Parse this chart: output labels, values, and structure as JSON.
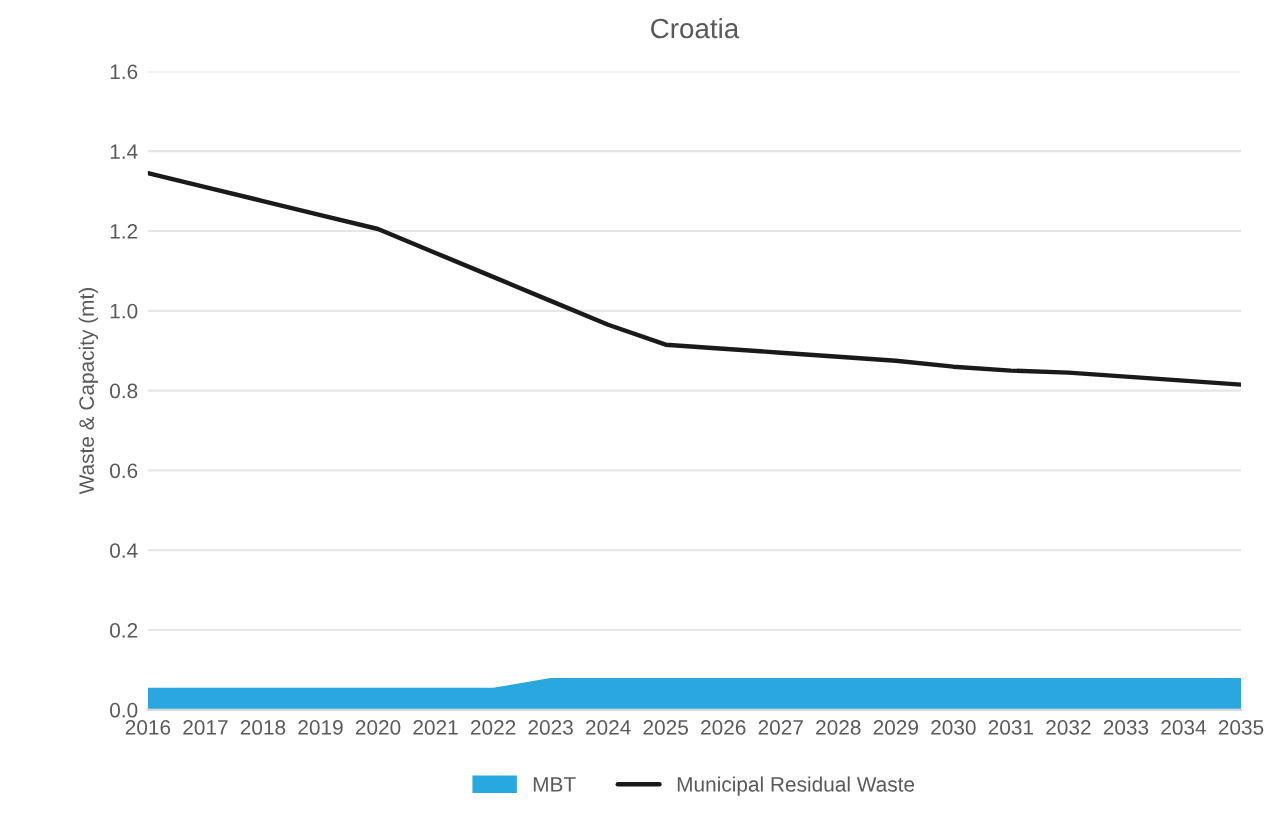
{
  "chart_data": {
    "type": "area",
    "title": "Croatia",
    "ylabel": "Waste & Capacity (mt)",
    "categories": [
      "2016",
      "2017",
      "2018",
      "2019",
      "2020",
      "2021",
      "2022",
      "2023",
      "2024",
      "2025",
      "2026",
      "2027",
      "2028",
      "2029",
      "2030",
      "2031",
      "2032",
      "2033",
      "2034",
      "2035"
    ],
    "series": [
      {
        "name": "MBT",
        "color": "#29a8e0",
        "values": [
          0.055,
          0.055,
          0.055,
          0.055,
          0.055,
          0.055,
          0.055,
          0.08,
          0.08,
          0.08,
          0.08,
          0.08,
          0.08,
          0.08,
          0.08,
          0.08,
          0.08,
          0.08,
          0.08,
          0.08
        ]
      },
      {
        "name": "Municipal Residual Waste",
        "type": "line",
        "color": "#1a1a1a",
        "values": [
          1.345,
          1.31,
          1.275,
          1.24,
          1.205,
          1.145,
          1.085,
          1.025,
          0.965,
          0.915,
          0.905,
          0.895,
          0.885,
          0.875,
          0.86,
          0.85,
          0.845,
          0.835,
          0.825,
          0.815
        ]
      }
    ],
    "ylim": [
      0,
      1.6
    ],
    "yticks": [
      {
        "value": 0,
        "label": "0.0"
      },
      0.2,
      0.4,
      0.6,
      0.8,
      {
        "value": 1,
        "label": "1.0"
      },
      1.2,
      1.4,
      1.6
    ],
    "grid": "y",
    "legend": "bottom"
  }
}
